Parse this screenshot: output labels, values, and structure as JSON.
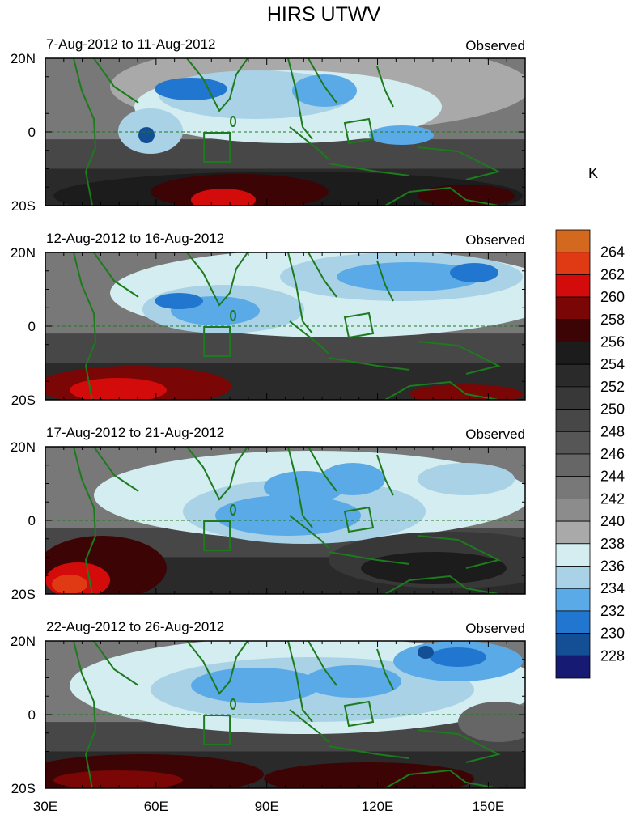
{
  "figure": {
    "title": "HIRS UTWV",
    "panels": [
      {
        "date_range": "7-Aug-2012 to 11-Aug-2012",
        "tag": "Observed"
      },
      {
        "date_range": "12-Aug-2012 to 16-Aug-2012",
        "tag": "Observed"
      },
      {
        "date_range": "17-Aug-2012 to 21-Aug-2012",
        "tag": "Observed"
      },
      {
        "date_range": "22-Aug-2012 to 26-Aug-2012",
        "tag": "Observed"
      }
    ],
    "lat_ticks": [
      "20N",
      "0",
      "20S"
    ],
    "lon_ticks": [
      "30E",
      "60E",
      "90E",
      "120E",
      "150E"
    ],
    "colorbar": {
      "unit": "K",
      "levels": [
        "264",
        "262",
        "260",
        "258",
        "256",
        "254",
        "252",
        "250",
        "248",
        "246",
        "244",
        "242",
        "240",
        "238",
        "236",
        "234",
        "232",
        "230",
        "228"
      ],
      "colors": [
        "#d2691e",
        "#e03a14",
        "#d40b0b",
        "#7a0606",
        "#3c0404",
        "#1c1c1c",
        "#2a2a2a",
        "#383838",
        "#474747",
        "#565656",
        "#666666",
        "#787878",
        "#8c8c8c",
        "#a9a9a9",
        "#d3edf1",
        "#a9d2e6",
        "#5aaae8",
        "#2176cf",
        "#144f95",
        "#161a72"
      ]
    }
  }
}
